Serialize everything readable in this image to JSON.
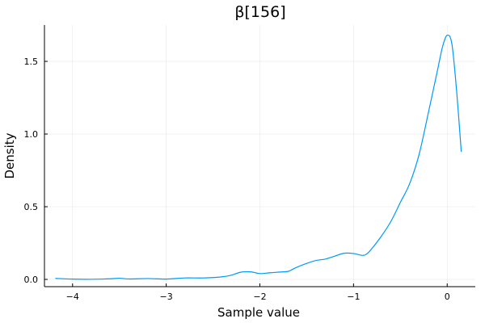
{
  "chart_data": {
    "type": "line",
    "title": "β[156]",
    "xlabel": "Sample value",
    "ylabel": "Density",
    "xlim": [
      -4.3,
      0.3
    ],
    "ylim": [
      -0.05,
      1.75
    ],
    "xticks": [
      -4,
      -3,
      -2,
      -1,
      0
    ],
    "xtick_labels": [
      "−4",
      "−3",
      "−2",
      "−1",
      "0"
    ],
    "yticks": [
      0.0,
      0.5,
      1.0,
      1.5
    ],
    "ytick_labels": [
      "0.0",
      "0.5",
      "1.0",
      "1.5"
    ],
    "grid": true,
    "legend": "none",
    "line_color": "#009AFA",
    "series": [
      {
        "x": [
          -4.18,
          -4.0,
          -3.8,
          -3.6,
          -3.5,
          -3.4,
          -3.2,
          -3.0,
          -2.8,
          -2.6,
          -2.4,
          -2.3,
          -2.2,
          -2.1,
          -2.0,
          -1.9,
          -1.8,
          -1.7,
          -1.65,
          -1.6,
          -1.5,
          -1.4,
          -1.3,
          -1.2,
          -1.1,
          -1.0,
          -0.9,
          -0.85,
          -0.8,
          -0.7,
          -0.6,
          -0.5,
          -0.4,
          -0.3,
          -0.2,
          -0.1,
          -0.05,
          0.0,
          0.05,
          0.1,
          0.15
        ],
        "values": [
          0.007,
          0.002,
          0.001,
          0.004,
          0.008,
          0.003,
          0.006,
          0.002,
          0.01,
          0.01,
          0.018,
          0.03,
          0.05,
          0.052,
          0.04,
          0.045,
          0.05,
          0.055,
          0.07,
          0.085,
          0.11,
          0.13,
          0.14,
          0.16,
          0.18,
          0.178,
          0.165,
          0.18,
          0.215,
          0.3,
          0.4,
          0.53,
          0.66,
          0.86,
          1.15,
          1.45,
          1.6,
          1.68,
          1.62,
          1.3,
          0.88
        ]
      }
    ]
  }
}
